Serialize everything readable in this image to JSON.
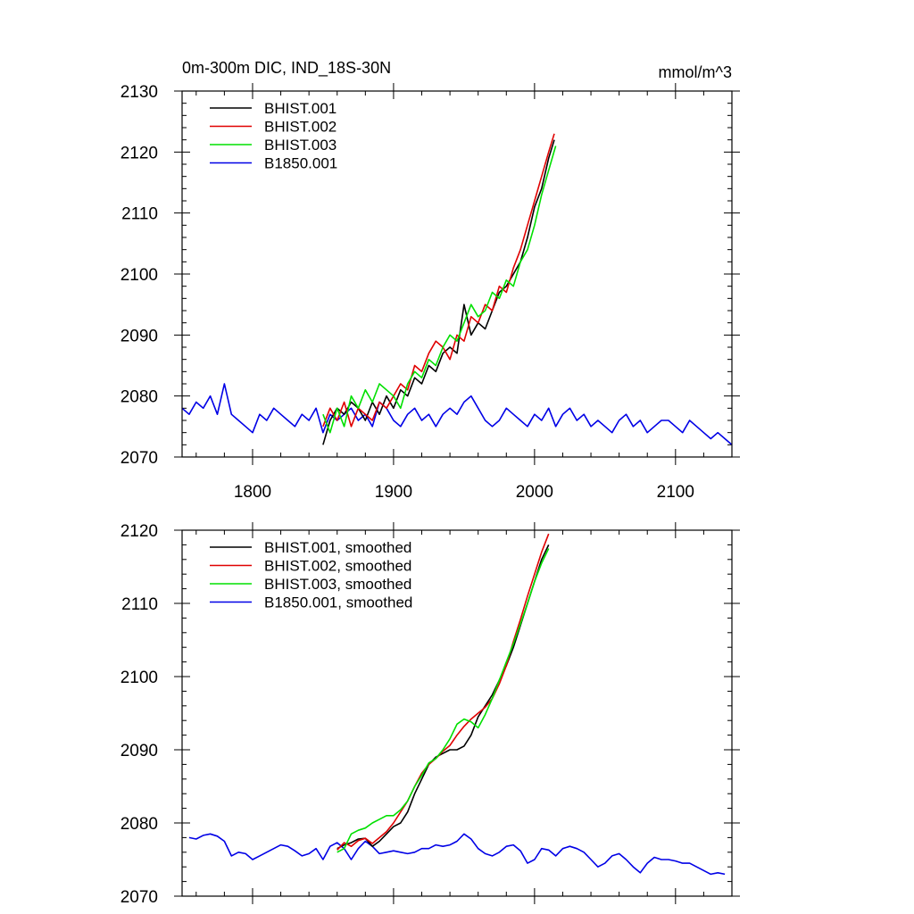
{
  "figure": {
    "title_left": "0m-300m DIC, IND_18S-30N",
    "title_right": "mmol/m^3"
  },
  "colors": {
    "BHIST.001": "#000000",
    "BHIST.002": "#e00000",
    "BHIST.003": "#00e000",
    "B1850.001": "#0000e6"
  },
  "chart_data": [
    {
      "type": "line",
      "title": "0m-300m DIC, IND_18S-30N",
      "units": "mmol/m^3",
      "xlim": [
        1750,
        2140
      ],
      "ylim": [
        2070,
        2130
      ],
      "x_ticks": [
        1800,
        1900,
        2000,
        2100
      ],
      "x_tick_labels": [
        "1800",
        "1900",
        "2000",
        "2100"
      ],
      "y_ticks": [
        2070,
        2080,
        2090,
        2100,
        2110,
        2120,
        2130
      ],
      "y_tick_labels": [
        "2070",
        "2080",
        "2090",
        "2100",
        "2110",
        "2120",
        "2130"
      ],
      "legend_position": "top-left",
      "grid": false,
      "series": [
        {
          "name": "BHIST.001",
          "color": "#000000",
          "x": [
            1850,
            1855,
            1860,
            1865,
            1870,
            1875,
            1880,
            1885,
            1890,
            1895,
            1900,
            1905,
            1910,
            1915,
            1920,
            1925,
            1930,
            1935,
            1940,
            1945,
            1950,
            1955,
            1960,
            1965,
            1970,
            1975,
            1980,
            1985,
            1990,
            1995,
            2000,
            2005,
            2010,
            2014
          ],
          "y": [
            2072,
            2076,
            2078,
            2077,
            2079,
            2078,
            2076,
            2079,
            2077,
            2080,
            2078,
            2081,
            2080,
            2083,
            2082,
            2085,
            2084,
            2087,
            2088,
            2087,
            2095,
            2090,
            2092,
            2091,
            2094,
            2097,
            2098,
            2100,
            2102,
            2106,
            2111,
            2114,
            2119,
            2122
          ]
        },
        {
          "name": "BHIST.002",
          "color": "#e00000",
          "x": [
            1850,
            1855,
            1860,
            1865,
            1870,
            1875,
            1880,
            1885,
            1890,
            1895,
            1900,
            1905,
            1910,
            1915,
            1920,
            1925,
            1930,
            1935,
            1940,
            1945,
            1950,
            1955,
            1960,
            1965,
            1970,
            1975,
            1980,
            1985,
            1990,
            1995,
            2000,
            2005,
            2010,
            2014
          ],
          "y": [
            2075,
            2078,
            2076,
            2079,
            2075,
            2078,
            2077,
            2076,
            2079,
            2078,
            2080,
            2082,
            2081,
            2085,
            2084,
            2087,
            2089,
            2088,
            2086,
            2090,
            2089,
            2093,
            2092,
            2095,
            2094,
            2098,
            2097,
            2101,
            2104,
            2108,
            2112,
            2116,
            2120,
            2123
          ]
        },
        {
          "name": "BHIST.003",
          "color": "#00e000",
          "x": [
            1850,
            1855,
            1860,
            1865,
            1870,
            1875,
            1880,
            1885,
            1890,
            1895,
            1900,
            1905,
            1910,
            1915,
            1920,
            1925,
            1930,
            1935,
            1940,
            1945,
            1950,
            1955,
            1960,
            1965,
            1970,
            1975,
            1980,
            1985,
            1990,
            1995,
            2000,
            2005,
            2010,
            2015
          ],
          "y": [
            2077,
            2074,
            2078,
            2075,
            2080,
            2078,
            2081,
            2079,
            2082,
            2081,
            2080,
            2078,
            2082,
            2084,
            2083,
            2086,
            2085,
            2088,
            2090,
            2089,
            2092,
            2095,
            2093,
            2094,
            2097,
            2096,
            2099,
            2098,
            2102,
            2104,
            2108,
            2113,
            2117,
            2121
          ]
        },
        {
          "name": "B1850.001",
          "color": "#0000e6",
          "x": [
            1750,
            1755,
            1760,
            1765,
            1770,
            1775,
            1780,
            1785,
            1790,
            1795,
            1800,
            1805,
            1810,
            1815,
            1820,
            1825,
            1830,
            1835,
            1840,
            1845,
            1850,
            1855,
            1860,
            1865,
            1870,
            1875,
            1880,
            1885,
            1890,
            1895,
            1900,
            1905,
            1910,
            1915,
            1920,
            1925,
            1930,
            1935,
            1940,
            1945,
            1950,
            1955,
            1960,
            1965,
            1970,
            1975,
            1980,
            1985,
            1990,
            1995,
            2000,
            2005,
            2010,
            2015,
            2020,
            2025,
            2030,
            2035,
            2040,
            2045,
            2050,
            2055,
            2060,
            2065,
            2070,
            2075,
            2080,
            2085,
            2090,
            2095,
            2100,
            2105,
            2110,
            2115,
            2120,
            2125,
            2130,
            2135,
            2140
          ],
          "y": [
            2078,
            2077,
            2079,
            2078,
            2080,
            2077,
            2082,
            2077,
            2076,
            2075,
            2074,
            2077,
            2076,
            2078,
            2077,
            2076,
            2075,
            2077,
            2076,
            2078,
            2074,
            2077,
            2076,
            2077,
            2078,
            2076,
            2077,
            2075,
            2079,
            2078,
            2076,
            2075,
            2077,
            2078,
            2076,
            2077,
            2075,
            2077,
            2078,
            2077,
            2079,
            2080,
            2078,
            2076,
            2075,
            2076,
            2078,
            2077,
            2076,
            2075,
            2077,
            2076,
            2078,
            2075,
            2077,
            2078,
            2076,
            2077,
            2075,
            2076,
            2075,
            2074,
            2076,
            2077,
            2075,
            2076,
            2074,
            2075,
            2076,
            2076,
            2075,
            2074,
            2076,
            2075,
            2074,
            2073,
            2074,
            2073,
            2072
          ]
        }
      ]
    },
    {
      "type": "line",
      "xlim": [
        1750,
        2140
      ],
      "ylim": [
        2070,
        2120
      ],
      "x_ticks": [
        1800,
        1900,
        2000,
        2100
      ],
      "y_ticks": [
        2070,
        2080,
        2090,
        2100,
        2110,
        2120
      ],
      "y_tick_labels": [
        "2070",
        "2080",
        "2090",
        "2100",
        "2110",
        "2120"
      ],
      "legend_position": "top-left",
      "grid": false,
      "series": [
        {
          "name": "BHIST.001, smoothed",
          "color": "#000000",
          "x": [
            1860,
            1865,
            1870,
            1875,
            1880,
            1885,
            1890,
            1895,
            1900,
            1905,
            1910,
            1915,
            1920,
            1925,
            1930,
            1935,
            1940,
            1945,
            1950,
            1955,
            1960,
            1965,
            1970,
            1975,
            1980,
            1985,
            1990,
            1995,
            2000,
            2005,
            2010
          ],
          "y": [
            2076.5,
            2077.0,
            2077.3,
            2077.8,
            2077.9,
            2076.8,
            2077.5,
            2078.5,
            2079.5,
            2080.0,
            2081.5,
            2084.0,
            2086.0,
            2088.0,
            2089.0,
            2089.5,
            2090.0,
            2090.0,
            2090.5,
            2092.0,
            2094.5,
            2096.0,
            2097.5,
            2099.5,
            2101.5,
            2104.0,
            2107.0,
            2110.0,
            2113.0,
            2116.0,
            2118.0
          ]
        },
        {
          "name": "BHIST.002, smoothed",
          "color": "#e00000",
          "x": [
            1860,
            1865,
            1870,
            1875,
            1880,
            1885,
            1890,
            1895,
            1900,
            1905,
            1910,
            1915,
            1920,
            1925,
            1930,
            1935,
            1940,
            1945,
            1950,
            1955,
            1960,
            1965,
            1970,
            1975,
            1980,
            1985,
            1990,
            1995,
            2000,
            2005,
            2010
          ],
          "y": [
            2076.3,
            2077.3,
            2076.8,
            2077.6,
            2077.9,
            2077.2,
            2078.0,
            2078.8,
            2080.0,
            2081.5,
            2083.0,
            2085.0,
            2086.8,
            2088.0,
            2088.8,
            2089.8,
            2090.6,
            2092.0,
            2093.2,
            2094.2,
            2095.0,
            2095.8,
            2097.0,
            2099.0,
            2101.5,
            2104.8,
            2107.8,
            2111.0,
            2114.0,
            2117.0,
            2119.5
          ]
        },
        {
          "name": "BHIST.003, smoothed",
          "color": "#00e000",
          "x": [
            1860,
            1865,
            1870,
            1875,
            1880,
            1885,
            1890,
            1895,
            1900,
            1905,
            1910,
            1915,
            1920,
            1925,
            1930,
            1935,
            1940,
            1945,
            1950,
            1955,
            1960,
            1965,
            1970,
            1975,
            1980,
            1985,
            1990,
            1995,
            2000,
            2005,
            2010
          ],
          "y": [
            2076.0,
            2076.5,
            2078.5,
            2079.0,
            2079.3,
            2080.0,
            2080.5,
            2081.0,
            2081.0,
            2081.8,
            2083.0,
            2085.0,
            2086.5,
            2088.2,
            2088.8,
            2090.0,
            2091.5,
            2093.5,
            2094.2,
            2093.8,
            2093.0,
            2094.8,
            2097.0,
            2099.5,
            2102.0,
            2104.5,
            2107.2,
            2110.0,
            2113.0,
            2115.5,
            2117.5
          ]
        },
        {
          "name": "B1850.001, smoothed",
          "color": "#0000e6",
          "x": [
            1755,
            1760,
            1765,
            1770,
            1775,
            1780,
            1785,
            1790,
            1795,
            1800,
            1805,
            1810,
            1815,
            1820,
            1825,
            1830,
            1835,
            1840,
            1845,
            1850,
            1855,
            1860,
            1865,
            1870,
            1875,
            1880,
            1885,
            1890,
            1895,
            1900,
            1905,
            1910,
            1915,
            1920,
            1925,
            1930,
            1935,
            1940,
            1945,
            1950,
            1955,
            1960,
            1965,
            1970,
            1975,
            1980,
            1985,
            1990,
            1995,
            2000,
            2005,
            2010,
            2015,
            2020,
            2025,
            2030,
            2035,
            2040,
            2045,
            2050,
            2055,
            2060,
            2065,
            2070,
            2075,
            2080,
            2085,
            2090,
            2095,
            2100,
            2105,
            2110,
            2115,
            2120,
            2125,
            2130,
            2135
          ],
          "y": [
            2078.0,
            2077.8,
            2078.3,
            2078.5,
            2078.2,
            2077.5,
            2075.5,
            2076.0,
            2075.8,
            2075.0,
            2075.5,
            2076.0,
            2076.5,
            2077.0,
            2076.8,
            2076.2,
            2075.5,
            2075.8,
            2076.5,
            2075.0,
            2076.8,
            2077.3,
            2076.5,
            2075.0,
            2076.5,
            2077.5,
            2076.8,
            2075.8,
            2076.0,
            2076.2,
            2076.0,
            2075.8,
            2076.0,
            2076.5,
            2076.5,
            2077.0,
            2076.8,
            2077.0,
            2077.5,
            2078.5,
            2077.8,
            2076.5,
            2075.8,
            2075.5,
            2076.0,
            2076.8,
            2077.0,
            2076.2,
            2074.5,
            2075.0,
            2076.5,
            2076.3,
            2075.5,
            2076.5,
            2076.8,
            2076.5,
            2076.0,
            2075.0,
            2074.0,
            2074.5,
            2075.5,
            2075.8,
            2075.0,
            2074.0,
            2073.2,
            2074.5,
            2075.3,
            2075.0,
            2075.0,
            2074.8,
            2074.5,
            2074.5,
            2074.0,
            2073.5,
            2073.0,
            2073.2,
            2073.0
          ]
        }
      ]
    }
  ]
}
